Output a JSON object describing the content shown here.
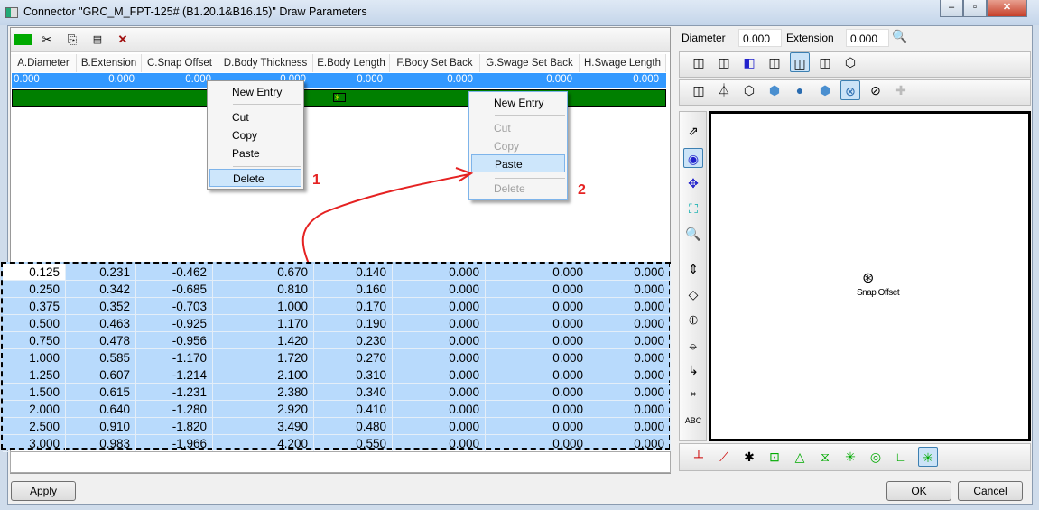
{
  "window": {
    "title": "Connector \"GRC_M_FPT-125# (B1.20.1&B16.15)\" Draw Parameters",
    "minimize": "–",
    "maximize": "▫",
    "close": "✕"
  },
  "toolbar": {
    "icons": [
      "new-entry-icon",
      "cut-icon",
      "copy-icon",
      "paste-icon",
      "delete-icon"
    ],
    "glyphs": [
      "✳",
      "✂",
      "⎘",
      "📋",
      "✕"
    ]
  },
  "grid": {
    "columns": [
      "A.Diameter",
      "B.Extension",
      "C.Snap Offset",
      "D.Body Thickness",
      "E.Body Length",
      "F.Body Set Back",
      "G.Swage Set Back",
      "H.Swage Length"
    ],
    "selected_row": [
      "0.000",
      "0.000",
      "0.000",
      "0.000",
      "0.000",
      "0.000",
      "0.000",
      "0.000"
    ]
  },
  "menu1": {
    "items": [
      "New Entry",
      "Cut",
      "Copy",
      "Paste",
      "Delete"
    ],
    "highlighted": "Delete",
    "annotation": "1"
  },
  "menu2": {
    "items": [
      "New Entry",
      "Cut",
      "Copy",
      "Paste",
      "Delete"
    ],
    "enabled": [
      "New Entry",
      "Paste"
    ],
    "highlighted": "Paste",
    "annotation": "2"
  },
  "pasted_rows": [
    [
      "0.125",
      "0.231",
      "-0.462",
      "0.670",
      "0.140",
      "0.000",
      "0.000",
      "0.000"
    ],
    [
      "0.250",
      "0.342",
      "-0.685",
      "0.810",
      "0.160",
      "0.000",
      "0.000",
      "0.000"
    ],
    [
      "0.375",
      "0.352",
      "-0.703",
      "1.000",
      "0.170",
      "0.000",
      "0.000",
      "0.000"
    ],
    [
      "0.500",
      "0.463",
      "-0.925",
      "1.170",
      "0.190",
      "0.000",
      "0.000",
      "0.000"
    ],
    [
      "0.750",
      "0.478",
      "-0.956",
      "1.420",
      "0.230",
      "0.000",
      "0.000",
      "0.000"
    ],
    [
      "1.000",
      "0.585",
      "-1.170",
      "1.720",
      "0.270",
      "0.000",
      "0.000",
      "0.000"
    ],
    [
      "1.250",
      "0.607",
      "-1.214",
      "2.100",
      "0.310",
      "0.000",
      "0.000",
      "0.000"
    ],
    [
      "1.500",
      "0.615",
      "-1.231",
      "2.380",
      "0.340",
      "0.000",
      "0.000",
      "0.000"
    ],
    [
      "2.000",
      "0.640",
      "-1.280",
      "2.920",
      "0.410",
      "0.000",
      "0.000",
      "0.000"
    ],
    [
      "2.500",
      "0.910",
      "-1.820",
      "3.490",
      "0.480",
      "0.000",
      "0.000",
      "0.000"
    ],
    [
      "3.000",
      "0.983",
      "-1.966",
      "4.200",
      "0.550",
      "0.000",
      "0.000",
      "0.000"
    ]
  ],
  "right": {
    "diameter_label": "Diameter",
    "diameter_value": "0.000",
    "extension_label": "Extension",
    "extension_value": "0.000",
    "canvas_label": "Snap Offset",
    "vtb_abc": "ABC"
  },
  "buttons": {
    "apply": "Apply",
    "ok": "OK",
    "cancel": "Cancel"
  },
  "colors": {
    "selection": "#3399ff",
    "pasted": "#b8dafc",
    "green_row": "#007f00",
    "annotation": "#e52222"
  }
}
